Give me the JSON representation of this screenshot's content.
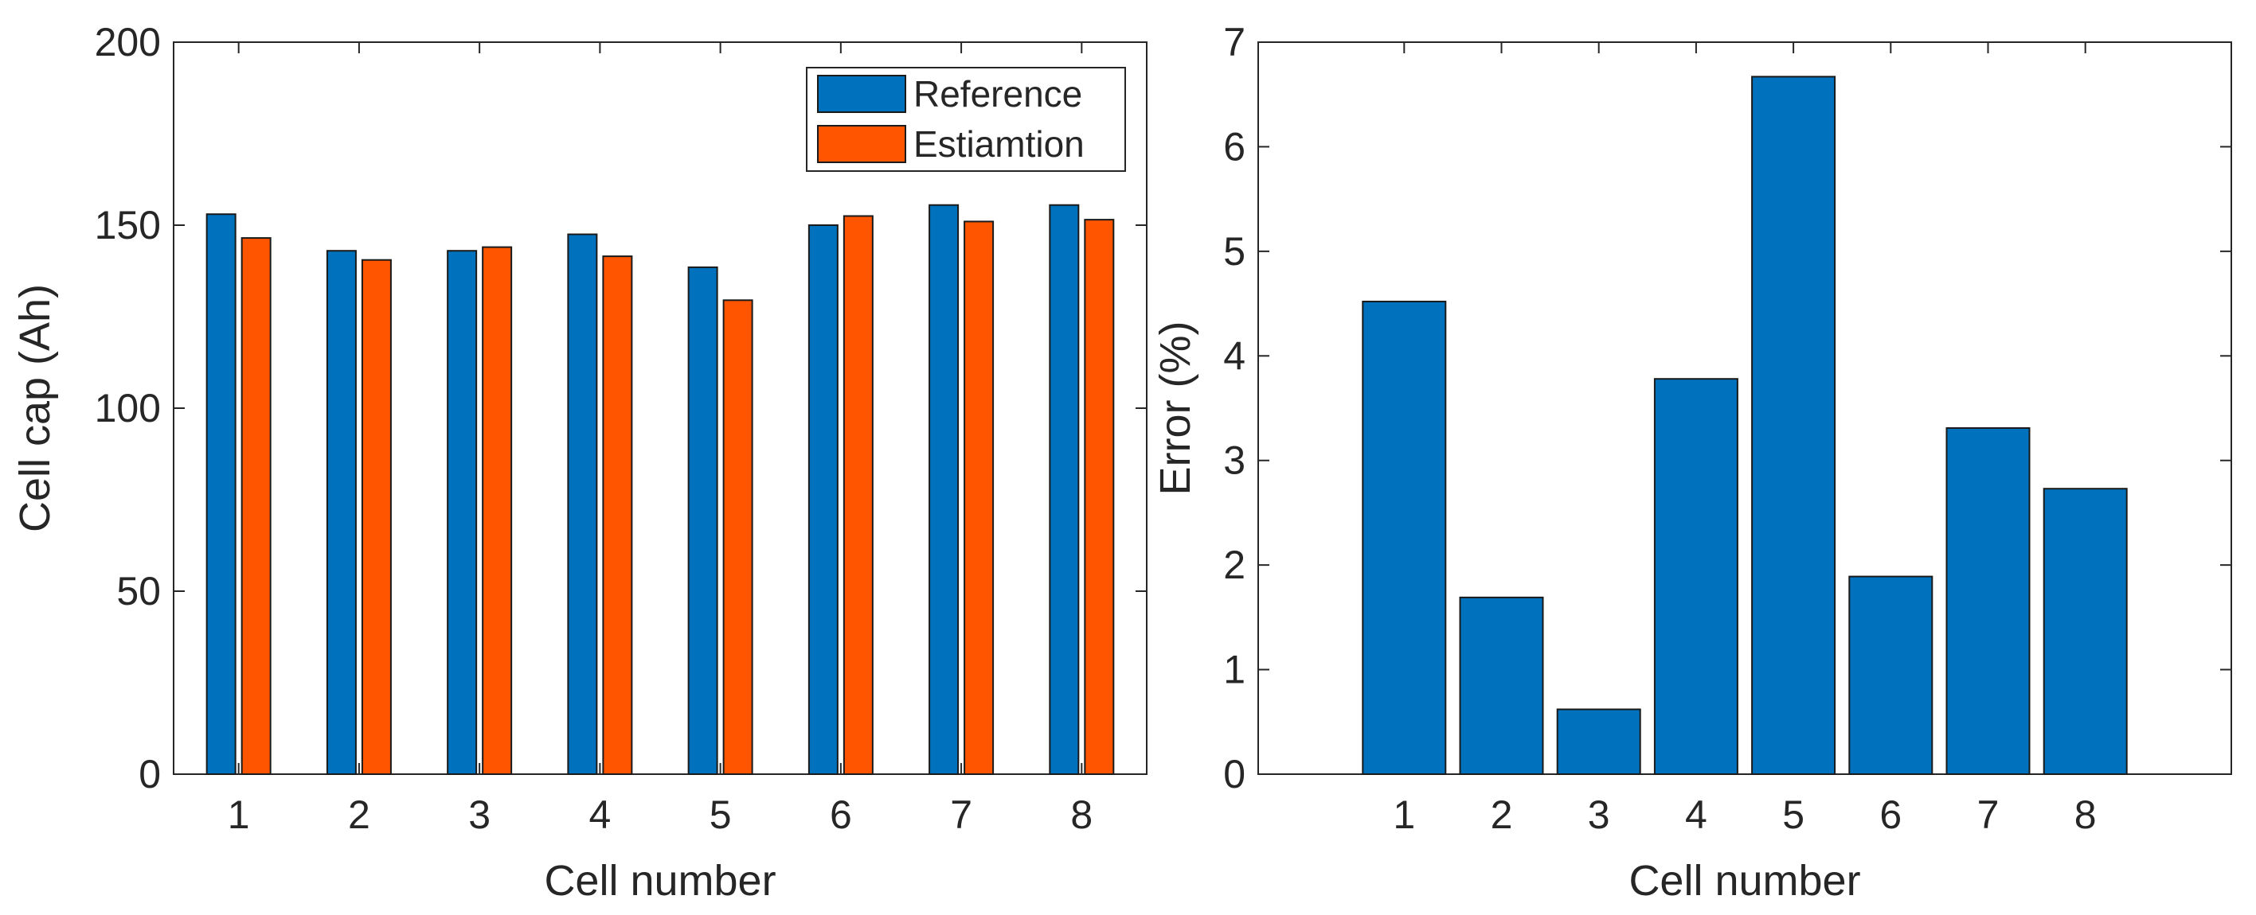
{
  "chart_data": [
    {
      "type": "bar",
      "xlabel": "Cell number",
      "ylabel": "Cell cap (Ah)",
      "categories": [
        "1",
        "2",
        "3",
        "4",
        "5",
        "6",
        "7",
        "8"
      ],
      "ylim": [
        0,
        200
      ],
      "yticks": [
        0,
        50,
        100,
        150,
        200
      ],
      "grid": false,
      "legend_position": "top-right",
      "series": [
        {
          "name": "Reference",
          "color": "#0072BD",
          "values": [
            153,
            143,
            143,
            147.5,
            138.5,
            150,
            155.5,
            155.5
          ]
        },
        {
          "name": "Estiamtion",
          "color": "#FF5500",
          "values": [
            146.5,
            140.5,
            144,
            141.5,
            129.5,
            152.5,
            151,
            151.5
          ]
        }
      ]
    },
    {
      "type": "bar",
      "xlabel": "Cell number",
      "ylabel": "Error (%)",
      "categories": [
        "1",
        "2",
        "3",
        "4",
        "5",
        "6",
        "7",
        "8"
      ],
      "ylim": [
        0,
        7
      ],
      "yticks": [
        0,
        1,
        2,
        3,
        4,
        5,
        6,
        7
      ],
      "grid": false,
      "series": [
        {
          "name": "Error",
          "color": "#0072BD",
          "values": [
            4.52,
            1.69,
            0.62,
            3.78,
            6.67,
            1.89,
            3.31,
            2.73
          ]
        }
      ]
    }
  ]
}
